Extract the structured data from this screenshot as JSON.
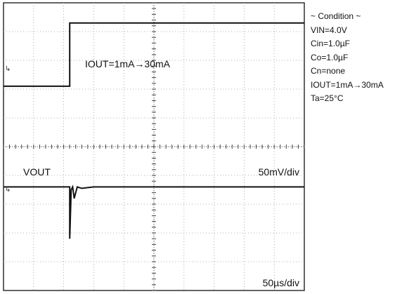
{
  "chart_data": {
    "type": "line",
    "title": "",
    "xlabel": "",
    "ylabel": "",
    "grid": true,
    "x_divisions": 10,
    "y_divisions": 10,
    "time_per_div": "50µs/div",
    "series": [
      {
        "name": "IOUT",
        "label": "IOUT=1mA→30mA",
        "marker": "↳",
        "x": [
          0,
          2.2,
          2.2,
          10
        ],
        "y": [
          7.1,
          7.1,
          9.3,
          9.3
        ]
      },
      {
        "name": "VOUT",
        "label": "VOUT",
        "scale": "50mV/div",
        "marker": "↳",
        "x": [
          0,
          2.2,
          2.2,
          2.25,
          2.3,
          2.35,
          2.45,
          2.6,
          3.0,
          10
        ],
        "y": [
          3.6,
          3.6,
          1.8,
          3.5,
          3.6,
          3.2,
          3.6,
          3.55,
          3.6,
          3.6
        ]
      }
    ]
  },
  "ch1": {
    "label": "IOUT=1mA→30mA",
    "marker": "↳"
  },
  "ch2": {
    "label": "VOUT",
    "marker": "↳"
  },
  "vscale_label": "50mV/div",
  "tscale_label": "50µs/div",
  "condition": {
    "title": "~ Condition ~",
    "lines": [
      "VIN=4.0V",
      "Cin=1.0µF",
      "Co=1.0µF",
      "Cn=none",
      "IOUT=1mA→30mA",
      "Ta=25°C"
    ]
  }
}
